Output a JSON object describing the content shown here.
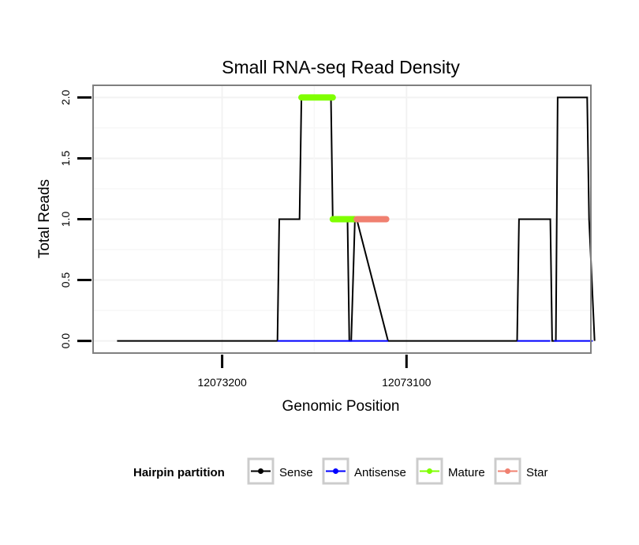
{
  "chart_data": {
    "type": "line",
    "title": "Small RNA-seq Read Density",
    "xlabel": "Genomic Position",
    "ylabel": "Total Reads",
    "xlim": [
      12073270,
      12073000
    ],
    "ylim": [
      -0.1,
      2.1
    ],
    "x_reversed": true,
    "x_ticks": [
      12073200,
      12073100
    ],
    "x_tick_labels": [
      "12073200",
      "12073100"
    ],
    "y_ticks": [
      0,
      0.5,
      1,
      1.5,
      2
    ],
    "y_tick_labels": [
      "0.0",
      "0.5",
      "1.0",
      "1.5",
      "2.0"
    ],
    "grid": true,
    "series": [
      {
        "name": "Sense",
        "color": "#000000",
        "x": [
          12073257,
          12073170,
          12073169,
          12073158,
          12073157,
          12073141,
          12073140,
          12073132,
          12073131,
          12073130,
          12073128,
          12073127,
          12073110,
          12073108,
          12073040,
          12073039,
          12073022,
          12073021,
          12073019,
          12073018,
          12073002,
          12073001,
          12072998
        ],
        "y": [
          0,
          0,
          1,
          1,
          2,
          2,
          1,
          1,
          0,
          0,
          1,
          1,
          0,
          0,
          0,
          1,
          1,
          0,
          0,
          2,
          2,
          1,
          0
        ]
      },
      {
        "name": "Antisense",
        "color": "#0000ff",
        "x": [
          12073170,
          12073110,
          12073040,
          12072998
        ],
        "y": [
          0,
          0,
          0,
          0
        ],
        "segments": [
          [
            12073170,
            12073110
          ],
          [
            12073040,
            12073022
          ],
          [
            12073020,
            12072999
          ]
        ]
      },
      {
        "name": "Mature",
        "color": "#7fff00",
        "segments": [
          {
            "x0": 12073157,
            "x1": 12073140,
            "y": 2
          },
          {
            "x0": 12073140,
            "x1": 12073128,
            "y": 1
          }
        ]
      },
      {
        "name": "Star",
        "color": "#f08070",
        "segments": [
          {
            "x0": 12073127,
            "x1": 12073111,
            "y": 1
          }
        ]
      }
    ],
    "legend": {
      "title": "Hairpin partition",
      "placement": "bottom",
      "entries": [
        {
          "label": "Sense",
          "color": "#000000"
        },
        {
          "label": "Antisense",
          "color": "#0000ff"
        },
        {
          "label": "Mature",
          "color": "#7fff00"
        },
        {
          "label": "Star",
          "color": "#f08070"
        }
      ]
    }
  }
}
